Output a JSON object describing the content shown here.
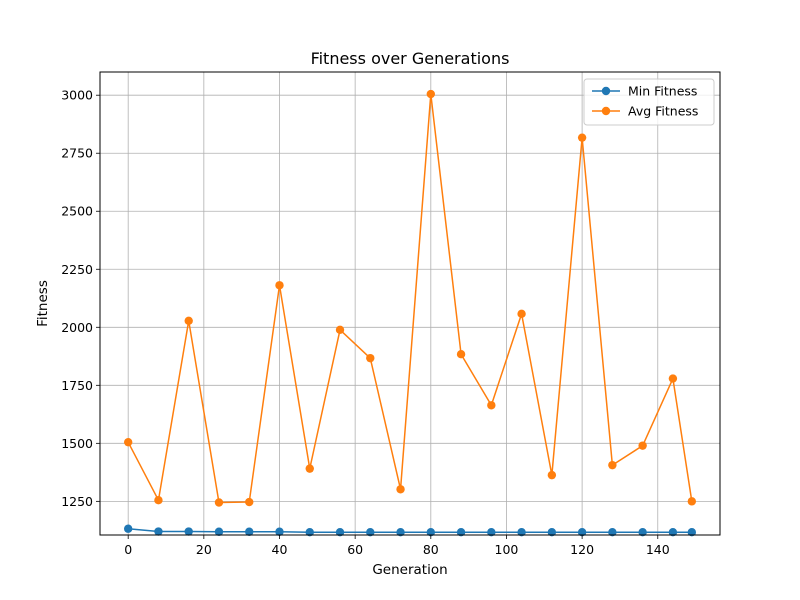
{
  "chart_data": {
    "type": "line",
    "title": "Fitness over Generations",
    "xlabel": "Generation",
    "ylabel": "Fitness",
    "xlim": [
      -7.45,
      156.45
    ],
    "ylim": [
      1105,
      3100
    ],
    "xticks": [
      0,
      20,
      40,
      60,
      80,
      100,
      120,
      140
    ],
    "yticks": [
      1250,
      1500,
      1750,
      2000,
      2250,
      2500,
      2750,
      3000
    ],
    "grid": true,
    "legend_position": "top-right",
    "x": [
      0,
      8,
      16,
      24,
      32,
      40,
      48,
      56,
      64,
      72,
      80,
      88,
      96,
      104,
      112,
      120,
      128,
      136,
      144,
      149
    ],
    "series": [
      {
        "name": "Min Fitness",
        "color": "#1f77b4",
        "marker": "circle",
        "values": [
          1132,
          1120,
          1120,
          1119,
          1119,
          1119,
          1117,
          1117,
          1117,
          1117,
          1117,
          1117,
          1117,
          1117,
          1117,
          1117,
          1117,
          1117,
          1117,
          1117
        ]
      },
      {
        "name": "Avg Fitness",
        "color": "#ff7f0e",
        "marker": "circle",
        "values": [
          1505,
          1255,
          2028,
          1245,
          1247,
          2181,
          1391,
          1989,
          1867,
          1302,
          3005,
          1884,
          1664,
          2058,
          1363,
          2817,
          1406,
          1490,
          1779,
          1250
        ]
      }
    ]
  }
}
